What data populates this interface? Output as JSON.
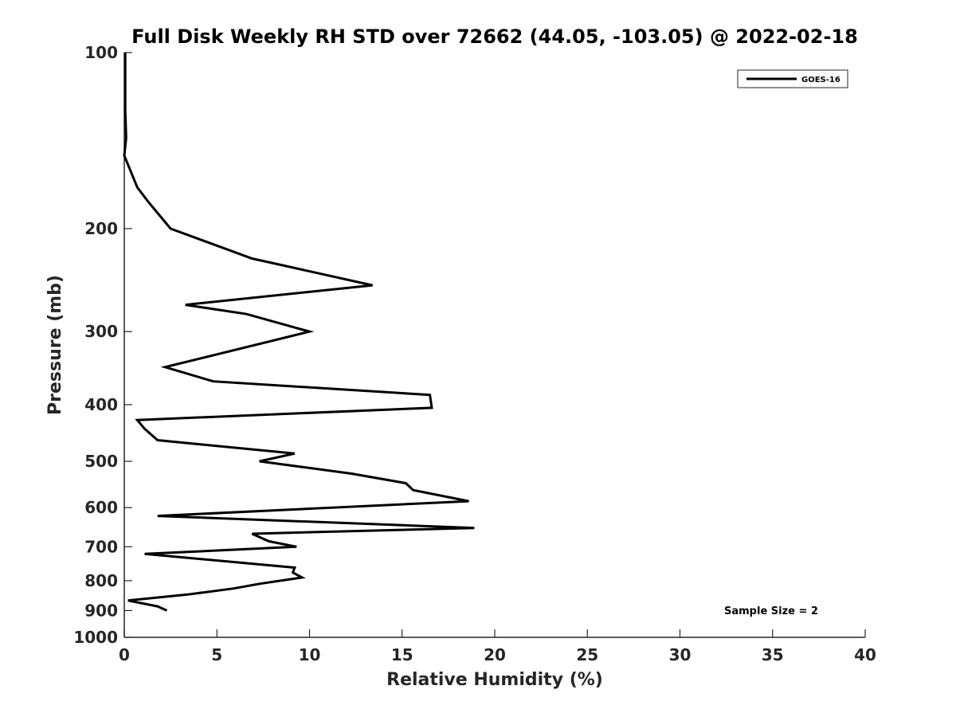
{
  "chart_data": {
    "type": "line",
    "title": "Full Disk Weekly RH STD over 72662 (44.05, -103.05) @ 2022-02-18",
    "xlabel": "Relative Humidity (%)",
    "ylabel": "Pressure (mb)",
    "xlim": [
      0,
      40
    ],
    "ylim": [
      100,
      1000
    ],
    "y_scale": "log",
    "y_reversed": true,
    "x_ticks": [
      0,
      5,
      10,
      15,
      20,
      25,
      30,
      35,
      40
    ],
    "y_ticks": [
      100,
      200,
      300,
      400,
      500,
      600,
      700,
      800,
      900,
      1000
    ],
    "grid": false,
    "legend_position": "top-right",
    "annotation": "Sample Size = 2",
    "series": [
      {
        "name": "GOES-16",
        "color": "#000000",
        "points": [
          [
            0.05,
            100
          ],
          [
            0.05,
            125
          ],
          [
            0.1,
            140
          ],
          [
            0.0,
            150
          ],
          [
            0.7,
            170
          ],
          [
            1.3,
            180
          ],
          [
            2.5,
            200
          ],
          [
            6.9,
            225
          ],
          [
            13.4,
            250
          ],
          [
            3.3,
            270
          ],
          [
            6.6,
            280
          ],
          [
            10.0,
            300
          ],
          [
            2.2,
            345
          ],
          [
            4.8,
            365
          ],
          [
            16.5,
            385
          ],
          [
            16.6,
            405
          ],
          [
            0.7,
            425
          ],
          [
            1.1,
            440
          ],
          [
            1.8,
            460
          ],
          [
            9.2,
            485
          ],
          [
            7.3,
            500
          ],
          [
            12.3,
            525
          ],
          [
            15.2,
            545
          ],
          [
            15.6,
            560
          ],
          [
            18.6,
            585
          ],
          [
            1.8,
            620
          ],
          [
            18.9,
            650
          ],
          [
            6.9,
            665
          ],
          [
            7.8,
            685
          ],
          [
            9.3,
            700
          ],
          [
            1.1,
            720
          ],
          [
            9.2,
            760
          ],
          [
            9.1,
            775
          ],
          [
            9.6,
            790
          ],
          [
            7.3,
            810
          ],
          [
            5.9,
            825
          ],
          [
            3.4,
            845
          ],
          [
            0.2,
            865
          ],
          [
            1.8,
            885
          ],
          [
            2.3,
            900
          ]
        ]
      }
    ]
  }
}
